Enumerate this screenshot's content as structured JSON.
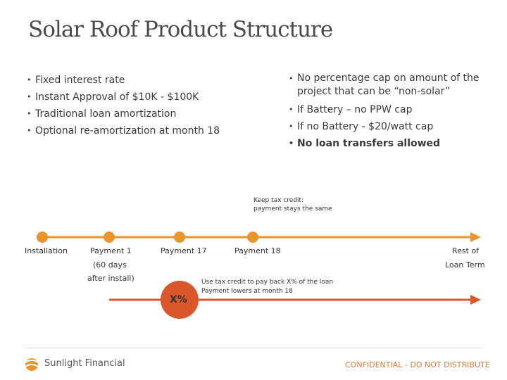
{
  "title": "Solar Roof Product Structure",
  "left_bullets": [
    "Fixed interest rate",
    "Instant Approval of $10K - $100K",
    "Traditional loan amortization",
    "Optional re-amortization at month 18"
  ],
  "right_bullets": [
    "No percentage cap on amount of the project that can be “non-solar”",
    "If Battery – no PPW cap",
    "If no Battery - $20/watt cap",
    "No loan transfers allowed"
  ],
  "tax_credit_note": [
    "Keep tax credit:",
    "payment stays the same"
  ],
  "timeline": {
    "installation": "Installation",
    "payment_1": "Payment 1",
    "payment_1_note_1": "(60 days",
    "payment_1_note_2": "after install)",
    "payment_17": "Payment 17",
    "payment_18": "Payment 18",
    "rest_of": "Rest of",
    "loan_term": "Loan Term"
  },
  "pay_back": {
    "badge": "X%",
    "line_1": "Use tax credit to pay back X% of the loan",
    "line_2": "Payment lowers at month 18"
  },
  "footer": {
    "logo_text": "Sunlight Financial",
    "confidential": "CONFIDENTIAL - DO NOT DISTRIBUTE"
  },
  "colors": {
    "timeline_orange": "#e8952b",
    "payback_orange": "#d9572b",
    "confidential": "#e07b39"
  }
}
